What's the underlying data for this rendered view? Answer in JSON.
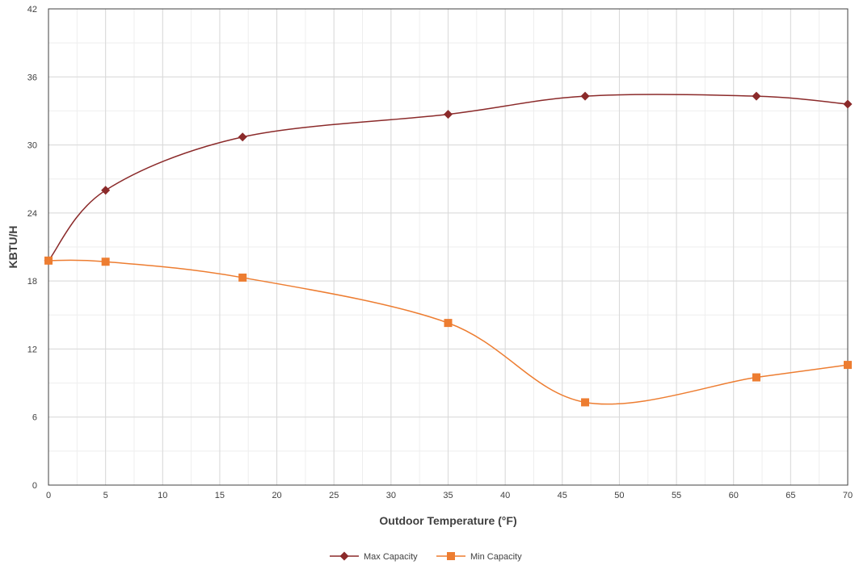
{
  "chart_data": {
    "type": "line",
    "xlabel": "Outdoor Temperature (°F)",
    "ylabel": "KBTU/H",
    "xlim": [
      0,
      70
    ],
    "ylim": [
      0,
      42
    ],
    "x_ticks": [
      0,
      5,
      10,
      15,
      20,
      25,
      30,
      35,
      40,
      45,
      50,
      55,
      60,
      65,
      70
    ],
    "y_ticks": [
      0,
      6,
      12,
      18,
      24,
      30,
      36,
      42
    ],
    "grid": true,
    "legend": "bottom",
    "series": [
      {
        "name": "Max Capacity",
        "color": "#8b2a2a",
        "marker": "diamond",
        "x": [
          0,
          5,
          17,
          35,
          47,
          62,
          70
        ],
        "y": [
          19.8,
          26.0,
          30.7,
          32.7,
          34.3,
          34.3,
          33.6
        ]
      },
      {
        "name": "Min Capacity",
        "color": "#ed7d31",
        "marker": "square",
        "x": [
          0,
          5,
          17,
          35,
          47,
          62,
          70
        ],
        "y": [
          19.8,
          19.7,
          18.3,
          14.3,
          7.3,
          9.5,
          10.6
        ]
      }
    ]
  }
}
